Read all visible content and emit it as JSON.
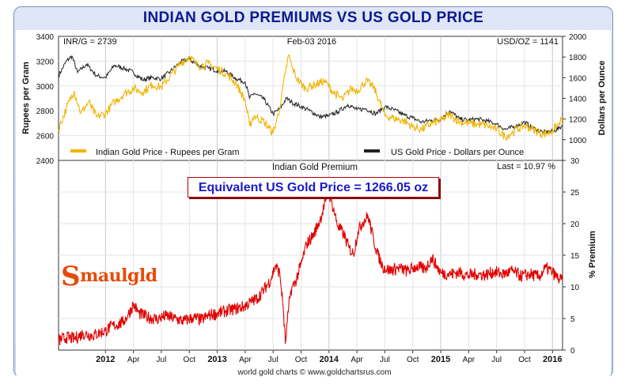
{
  "header": {
    "title": "INDIAN GOLD PREMIUMS VS US GOLD PRICE"
  },
  "top_panel": {
    "inr_label": "INR/G = 2739",
    "date_label": "Feb-03  2016",
    "usd_label": "USD/OZ = 1141",
    "left_axis_title": "Rupees per Gram",
    "right_axis_title": "Dollars per Ounce",
    "legend_india": "Indian Gold Price - Rupees per Gram",
    "legend_us": "US Gold Price - Dollars per Ounce"
  },
  "bottom_panel": {
    "title": "Indian Gold Premium",
    "last_label": "Last = 10.97 %",
    "right_axis_title": "% Premium",
    "equivalent_label": "Equivalent US Gold Price = 1266.05 oz"
  },
  "logo": {
    "first": "S",
    "rest": "maulgld"
  },
  "credit": "world gold charts © www.goldchartsrus.com",
  "colors": {
    "india": "#f0b400",
    "us": "#222222",
    "premium": "#e00000",
    "title": "#0b1a8c"
  },
  "chart_data": [
    {
      "type": "line",
      "title": "",
      "x_start": "2011.58",
      "x_end": "2016.09",
      "x_ticks": [
        {
          "x": 2012.0,
          "label": "2012",
          "bold": true
        },
        {
          "x": 2012.25,
          "label": "Apr"
        },
        {
          "x": 2012.5,
          "label": "Jul"
        },
        {
          "x": 2012.75,
          "label": "Oct"
        },
        {
          "x": 2013.0,
          "label": "2013",
          "bold": true
        },
        {
          "x": 2013.25,
          "label": "Apr"
        },
        {
          "x": 2013.5,
          "label": "Jul"
        },
        {
          "x": 2013.75,
          "label": "Oct"
        },
        {
          "x": 2014.0,
          "label": "2014",
          "bold": true
        },
        {
          "x": 2014.25,
          "label": "Apr"
        },
        {
          "x": 2014.5,
          "label": "Jul"
        },
        {
          "x": 2014.75,
          "label": "Oct"
        },
        {
          "x": 2015.0,
          "label": "2015",
          "bold": true
        },
        {
          "x": 2015.25,
          "label": "Apr"
        },
        {
          "x": 2015.5,
          "label": "Jul"
        },
        {
          "x": 2015.75,
          "label": "Oct"
        },
        {
          "x": 2016.0,
          "label": "2016",
          "bold": true
        }
      ],
      "left_axis": {
        "label": "Rupees per Gram",
        "ylim": [
          2400,
          3400
        ],
        "ticks": [
          2400,
          2600,
          2800,
          3000,
          3200,
          3400
        ]
      },
      "right_axis": {
        "label": "Dollars per Ounce",
        "ylim": [
          800,
          2000
        ],
        "ticks": [
          1000,
          1200,
          1400,
          1600,
          1800,
          2000
        ]
      },
      "series": [
        {
          "name": "Indian Gold Price - Rupees per Gram",
          "axis": "left",
          "points": [
            [
              2011.58,
              2650
            ],
            [
              2011.65,
              2820
            ],
            [
              2011.72,
              2960
            ],
            [
              2011.78,
              2780
            ],
            [
              2011.85,
              2870
            ],
            [
              2011.92,
              2750
            ],
            [
              2012.0,
              2780
            ],
            [
              2012.08,
              2870
            ],
            [
              2012.17,
              2940
            ],
            [
              2012.25,
              2980
            ],
            [
              2012.33,
              2950
            ],
            [
              2012.42,
              3010
            ],
            [
              2012.5,
              2990
            ],
            [
              2012.58,
              3080
            ],
            [
              2012.67,
              3180
            ],
            [
              2012.75,
              3240
            ],
            [
              2012.83,
              3160
            ],
            [
              2012.92,
              3180
            ],
            [
              2013.0,
              3140
            ],
            [
              2013.08,
              3100
            ],
            [
              2013.17,
              3020
            ],
            [
              2013.25,
              2880
            ],
            [
              2013.29,
              2680
            ],
            [
              2013.33,
              2760
            ],
            [
              2013.42,
              2710
            ],
            [
              2013.5,
              2620
            ],
            [
              2013.56,
              2820
            ],
            [
              2013.61,
              3110
            ],
            [
              2013.64,
              3250
            ],
            [
              2013.67,
              3150
            ],
            [
              2013.72,
              3050
            ],
            [
              2013.79,
              2980
            ],
            [
              2013.87,
              3010
            ],
            [
              2013.96,
              3040
            ],
            [
              2014.04,
              2950
            ],
            [
              2014.12,
              2890
            ],
            [
              2014.2,
              2980
            ],
            [
              2014.25,
              2960
            ],
            [
              2014.33,
              3040
            ],
            [
              2014.4,
              2990
            ],
            [
              2014.46,
              2860
            ],
            [
              2014.5,
              2760
            ],
            [
              2014.58,
              2740
            ],
            [
              2014.67,
              2720
            ],
            [
              2014.75,
              2670
            ],
            [
              2014.83,
              2650
            ],
            [
              2014.92,
              2700
            ],
            [
              2015.0,
              2720
            ],
            [
              2015.08,
              2770
            ],
            [
              2015.17,
              2710
            ],
            [
              2015.25,
              2700
            ],
            [
              2015.33,
              2690
            ],
            [
              2015.42,
              2680
            ],
            [
              2015.5,
              2650
            ],
            [
              2015.58,
              2590
            ],
            [
              2015.66,
              2640
            ],
            [
              2015.75,
              2680
            ],
            [
              2015.83,
              2650
            ],
            [
              2015.92,
              2610
            ],
            [
              2016.0,
              2640
            ],
            [
              2016.06,
              2700
            ],
            [
              2016.09,
              2739
            ]
          ]
        },
        {
          "name": "US Gold Price - Dollars per Ounce",
          "axis": "right",
          "points": [
            [
              2011.58,
              1620
            ],
            [
              2011.65,
              1760
            ],
            [
              2011.7,
              1810
            ],
            [
              2011.75,
              1650
            ],
            [
              2011.83,
              1730
            ],
            [
              2011.92,
              1620
            ],
            [
              2012.0,
              1600
            ],
            [
              2012.08,
              1720
            ],
            [
              2012.17,
              1690
            ],
            [
              2012.25,
              1650
            ],
            [
              2012.33,
              1580
            ],
            [
              2012.42,
              1600
            ],
            [
              2012.5,
              1590
            ],
            [
              2012.58,
              1660
            ],
            [
              2012.67,
              1750
            ],
            [
              2012.75,
              1780
            ],
            [
              2012.83,
              1720
            ],
            [
              2012.92,
              1690
            ],
            [
              2013.0,
              1670
            ],
            [
              2013.08,
              1660
            ],
            [
              2013.17,
              1590
            ],
            [
              2013.25,
              1560
            ],
            [
              2013.29,
              1400
            ],
            [
              2013.33,
              1450
            ],
            [
              2013.42,
              1390
            ],
            [
              2013.5,
              1250
            ],
            [
              2013.56,
              1300
            ],
            [
              2013.62,
              1400
            ],
            [
              2013.67,
              1360
            ],
            [
              2013.75,
              1320
            ],
            [
              2013.83,
              1280
            ],
            [
              2013.92,
              1220
            ],
            [
              2014.0,
              1230
            ],
            [
              2014.08,
              1270
            ],
            [
              2014.17,
              1340
            ],
            [
              2014.25,
              1290
            ],
            [
              2014.33,
              1300
            ],
            [
              2014.42,
              1250
            ],
            [
              2014.5,
              1320
            ],
            [
              2014.58,
              1290
            ],
            [
              2014.67,
              1240
            ],
            [
              2014.75,
              1210
            ],
            [
              2014.83,
              1170
            ],
            [
              2014.92,
              1190
            ],
            [
              2015.0,
              1200
            ],
            [
              2015.08,
              1280
            ],
            [
              2015.17,
              1200
            ],
            [
              2015.25,
              1190
            ],
            [
              2015.33,
              1200
            ],
            [
              2015.42,
              1180
            ],
            [
              2015.5,
              1150
            ],
            [
              2015.58,
              1100
            ],
            [
              2015.67,
              1130
            ],
            [
              2015.75,
              1170
            ],
            [
              2015.83,
              1110
            ],
            [
              2015.92,
              1070
            ],
            [
              2016.0,
              1080
            ],
            [
              2016.06,
              1110
            ],
            [
              2016.09,
              1141
            ]
          ]
        }
      ]
    },
    {
      "type": "line",
      "title": "Indian Gold Premium",
      "ylabel": "% Premium",
      "ylim": [
        0,
        30
      ],
      "yticks": [
        0,
        5,
        10,
        15,
        20,
        25,
        30
      ],
      "series": [
        {
          "name": "",
          "points": [
            [
              2011.58,
              1.5
            ],
            [
              2011.65,
              2.0
            ],
            [
              2011.72,
              1.8
            ],
            [
              2011.8,
              2.6
            ],
            [
              2011.88,
              2.3
            ],
            [
              2011.96,
              2.8
            ],
            [
              2012.0,
              3.0
            ],
            [
              2012.04,
              3.6
            ],
            [
              2012.08,
              3.9
            ],
            [
              2012.15,
              4.3
            ],
            [
              2012.2,
              5.5
            ],
            [
              2012.25,
              7.2
            ],
            [
              2012.3,
              5.8
            ],
            [
              2012.38,
              5.2
            ],
            [
              2012.46,
              4.9
            ],
            [
              2012.54,
              5.4
            ],
            [
              2012.62,
              5.0
            ],
            [
              2012.7,
              4.6
            ],
            [
              2012.78,
              5.1
            ],
            [
              2012.86,
              4.8
            ],
            [
              2012.94,
              5.6
            ],
            [
              2013.0,
              5.8
            ],
            [
              2013.08,
              6.2
            ],
            [
              2013.16,
              6.5
            ],
            [
              2013.24,
              6.9
            ],
            [
              2013.3,
              7.6
            ],
            [
              2013.36,
              8.2
            ],
            [
              2013.42,
              9.6
            ],
            [
              2013.48,
              11.2
            ],
            [
              2013.52,
              13.4
            ],
            [
              2013.56,
              12.1
            ],
            [
              2013.59,
              6.8
            ],
            [
              2013.61,
              1.0
            ],
            [
              2013.635,
              6.0
            ],
            [
              2013.66,
              9.5
            ],
            [
              2013.7,
              10.8
            ],
            [
              2013.75,
              13.5
            ],
            [
              2013.8,
              16.8
            ],
            [
              2013.86,
              18.2
            ],
            [
              2013.92,
              20.6
            ],
            [
              2013.97,
              23.5
            ],
            [
              2014.0,
              25.0
            ],
            [
              2014.04,
              22.3
            ],
            [
              2014.08,
              19.6
            ],
            [
              2014.13,
              18.4
            ],
            [
              2014.18,
              16.1
            ],
            [
              2014.22,
              15.2
            ],
            [
              2014.26,
              18.8
            ],
            [
              2014.3,
              20.2
            ],
            [
              2014.35,
              21.2
            ],
            [
              2014.4,
              17.4
            ],
            [
              2014.44,
              15.0
            ],
            [
              2014.48,
              13.2
            ],
            [
              2014.54,
              12.6
            ],
            [
              2014.62,
              13.0
            ],
            [
              2014.7,
              12.5
            ],
            [
              2014.78,
              13.2
            ],
            [
              2014.86,
              12.8
            ],
            [
              2014.92,
              14.6
            ],
            [
              2014.96,
              13.4
            ],
            [
              2015.0,
              12.2
            ],
            [
              2015.08,
              12.0
            ],
            [
              2015.16,
              12.3
            ],
            [
              2015.24,
              11.8
            ],
            [
              2015.32,
              12.0
            ],
            [
              2015.4,
              11.9
            ],
            [
              2015.48,
              12.4
            ],
            [
              2015.56,
              12.0
            ],
            [
              2015.64,
              12.5
            ],
            [
              2015.72,
              11.7
            ],
            [
              2015.8,
              12.0
            ],
            [
              2015.88,
              11.6
            ],
            [
              2015.94,
              13.0
            ],
            [
              2016.0,
              12.3
            ],
            [
              2016.05,
              11.3
            ],
            [
              2016.09,
              10.97
            ]
          ]
        }
      ]
    }
  ]
}
